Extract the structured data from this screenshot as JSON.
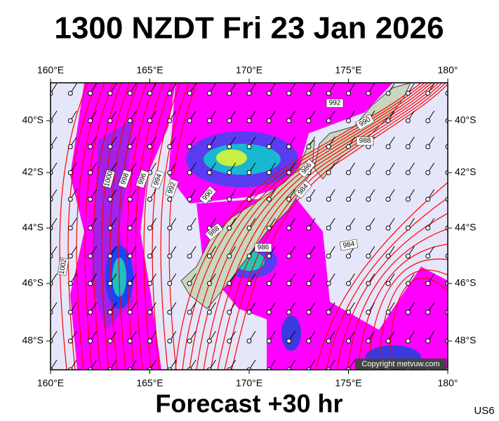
{
  "header": {
    "title": "1300 NZDT Fri 23 Jan 2026"
  },
  "map": {
    "lon_labels": [
      "160°E",
      "165°E",
      "170°E",
      "175°E",
      "180°"
    ],
    "lat_labels": [
      "40°S",
      "42°S",
      "44°S",
      "46°S",
      "48°S"
    ],
    "isobar_labels": [
      "992",
      "990",
      "988",
      "986",
      "984",
      "990",
      "992",
      "994",
      "996",
      "998",
      "1000",
      "1002",
      "988",
      "986",
      "984"
    ],
    "copyright": "Copyright metvuw.com"
  },
  "footer": {
    "forecast": "Forecast +30 hr",
    "code": "US6"
  }
}
